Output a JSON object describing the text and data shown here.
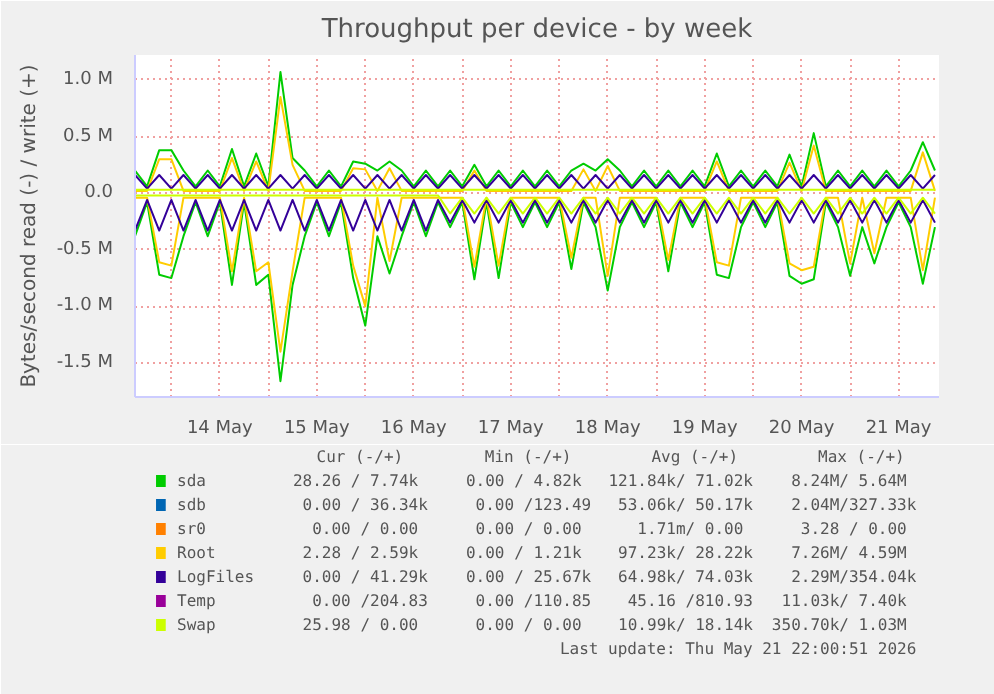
{
  "chart_data": {
    "type": "line",
    "title": "Throughput per device - by week",
    "ylabel": "Bytes/second read (-) / write (+)",
    "x": [
      "2026-05-13T15:00",
      "2026-05-13T18:00",
      "2026-05-13T21:00",
      "2026-05-14T00:00",
      "2026-05-14T03:00",
      "2026-05-14T06:00",
      "2026-05-14T09:00",
      "2026-05-14T12:00",
      "2026-05-14T15:00",
      "2026-05-14T18:00",
      "2026-05-14T21:00",
      "2026-05-15T00:00",
      "2026-05-15T03:00",
      "2026-05-15T06:00",
      "2026-05-15T09:00",
      "2026-05-15T12:00",
      "2026-05-15T15:00",
      "2026-05-15T18:00",
      "2026-05-15T21:00",
      "2026-05-16T00:00",
      "2026-05-16T03:00",
      "2026-05-16T06:00",
      "2026-05-16T09:00",
      "2026-05-16T12:00",
      "2026-05-16T15:00",
      "2026-05-16T18:00",
      "2026-05-16T21:00",
      "2026-05-17T00:00",
      "2026-05-17T03:00",
      "2026-05-17T06:00",
      "2026-05-17T09:00",
      "2026-05-17T12:00",
      "2026-05-17T15:00",
      "2026-05-17T18:00",
      "2026-05-17T21:00",
      "2026-05-18T00:00",
      "2026-05-18T03:00",
      "2026-05-18T06:00",
      "2026-05-18T09:00",
      "2026-05-18T12:00",
      "2026-05-18T15:00",
      "2026-05-18T18:00",
      "2026-05-18T21:00",
      "2026-05-19T00:00",
      "2026-05-19T03:00",
      "2026-05-19T06:00",
      "2026-05-19T09:00",
      "2026-05-19T12:00",
      "2026-05-19T15:00",
      "2026-05-19T18:00",
      "2026-05-19T21:00",
      "2026-05-20T00:00",
      "2026-05-20T03:00",
      "2026-05-20T06:00",
      "2026-05-20T09:00",
      "2026-05-20T12:00",
      "2026-05-20T15:00",
      "2026-05-20T18:00",
      "2026-05-20T21:00",
      "2026-05-21T00:00",
      "2026-05-21T03:00",
      "2026-05-21T06:00",
      "2026-05-21T09:00",
      "2026-05-21T12:00",
      "2026-05-21T15:00",
      "2026-05-21T18:00",
      "2026-05-21T21:00"
    ],
    "xlim": [
      "2026-05-13T15:00",
      "2026-05-21T22:00"
    ],
    "xticks": [
      {
        "value": "2026-05-14T00:00",
        "label": null
      },
      {
        "value": "2026-05-14T12:00",
        "label": "14 May"
      },
      {
        "value": "2026-05-15T00:00",
        "label": null
      },
      {
        "value": "2026-05-15T12:00",
        "label": "15 May"
      },
      {
        "value": "2026-05-16T00:00",
        "label": null
      },
      {
        "value": "2026-05-16T12:00",
        "label": "16 May"
      },
      {
        "value": "2026-05-17T00:00",
        "label": null
      },
      {
        "value": "2026-05-17T12:00",
        "label": "17 May"
      },
      {
        "value": "2026-05-18T00:00",
        "label": null
      },
      {
        "value": "2026-05-18T12:00",
        "label": "18 May"
      },
      {
        "value": "2026-05-19T00:00",
        "label": null
      },
      {
        "value": "2026-05-19T12:00",
        "label": "19 May"
      },
      {
        "value": "2026-05-20T00:00",
        "label": null
      },
      {
        "value": "2026-05-20T12:00",
        "label": "20 May"
      },
      {
        "value": "2026-05-21T00:00",
        "label": null
      },
      {
        "value": "2026-05-21T12:00",
        "label": "21 May"
      }
    ],
    "ylim": [
      -1800000,
      1220000
    ],
    "yticks": [
      {
        "value": -1500000,
        "label": "-1.5 M"
      },
      {
        "value": -1000000,
        "label": "-1.0 M"
      },
      {
        "value": -500000,
        "label": "-0.5 M"
      },
      {
        "value": 0,
        "label": "0.0"
      },
      {
        "value": 500000,
        "label": "0.5 M"
      },
      {
        "value": 1000000,
        "label": "1.0 M"
      }
    ],
    "grid": true,
    "legend": "bottom",
    "line_style": "solid",
    "series": [
      {
        "name": "sda",
        "color": "#00cc00",
        "values": [
          200000,
          60000,
          380000,
          380000,
          200000,
          60000,
          200000,
          60000,
          390000,
          60000,
          350000,
          60000,
          1070000,
          310000,
          200000,
          60000,
          200000,
          60000,
          280000,
          260000,
          200000,
          280000,
          200000,
          60000,
          200000,
          60000,
          200000,
          60000,
          250000,
          60000,
          200000,
          60000,
          200000,
          60000,
          200000,
          60000,
          200000,
          260000,
          200000,
          300000,
          200000,
          60000,
          200000,
          60000,
          200000,
          60000,
          200000,
          60000,
          350000,
          60000,
          200000,
          60000,
          200000,
          60000,
          340000,
          60000,
          530000,
          60000,
          200000,
          60000,
          200000,
          60000,
          200000,
          60000,
          200000,
          450000,
          200000
        ]
      },
      {
        "color": "#00cc00",
        "values": [
          -380000,
          -80000,
          -720000,
          -750000,
          -380000,
          -80000,
          -380000,
          -80000,
          -810000,
          -80000,
          -810000,
          -720000,
          -1660000,
          -810000,
          -380000,
          -80000,
          -380000,
          -80000,
          -750000,
          -1170000,
          -380000,
          -710000,
          -380000,
          -80000,
          -380000,
          -80000,
          -300000,
          -80000,
          -760000,
          -80000,
          -750000,
          -80000,
          -300000,
          -80000,
          -300000,
          -80000,
          -670000,
          -80000,
          -300000,
          -860000,
          -300000,
          -80000,
          -300000,
          -80000,
          -690000,
          -80000,
          -300000,
          -80000,
          -720000,
          -750000,
          -300000,
          -80000,
          -300000,
          -80000,
          -730000,
          -800000,
          -760000,
          -80000,
          -300000,
          -730000,
          -300000,
          -620000,
          -300000,
          -80000,
          -300000,
          -800000,
          -300000
        ]
      },
      {
        "name": "sdb",
        "color": "#0066b3",
        "values": [
          null,
          null,
          null,
          null,
          null,
          null,
          null,
          null,
          null,
          null,
          null,
          null,
          null,
          null,
          null,
          null,
          null,
          null,
          null,
          null,
          null,
          null,
          null,
          null,
          null,
          null,
          null,
          null,
          null,
          null,
          null,
          null,
          null,
          null,
          null,
          null,
          null,
          null,
          null,
          null,
          null,
          null,
          null,
          null,
          null,
          null,
          null,
          null,
          null,
          null,
          null,
          null,
          null,
          null,
          null,
          null,
          null,
          null,
          null,
          null,
          null,
          null,
          null,
          null,
          null,
          null,
          null
        ]
      },
      {
        "name": "sr0",
        "color": "#ff8000",
        "values": [
          null,
          null,
          null,
          null,
          null,
          null,
          null,
          null,
          null,
          null,
          null,
          null,
          null,
          null,
          null,
          null,
          null,
          null,
          null,
          null,
          null,
          null,
          null,
          null,
          null,
          null,
          null,
          null,
          null,
          null,
          null,
          null,
          null,
          null,
          null,
          null,
          null,
          null,
          null,
          null,
          null,
          null,
          null,
          null,
          null,
          null,
          null,
          null,
          null,
          null,
          null,
          null,
          null,
          null,
          null,
          null,
          null,
          null,
          null,
          null,
          null,
          null,
          null,
          null,
          null,
          null,
          null
        ]
      },
      {
        "name": "Root",
        "color": "#ffcc00",
        "values": [
          20000,
          20000,
          300000,
          300000,
          20000,
          20000,
          20000,
          20000,
          310000,
          20000,
          280000,
          20000,
          850000,
          250000,
          20000,
          20000,
          20000,
          20000,
          220000,
          210000,
          20000,
          220000,
          20000,
          20000,
          20000,
          20000,
          20000,
          20000,
          200000,
          20000,
          20000,
          20000,
          20000,
          20000,
          20000,
          20000,
          20000,
          210000,
          20000,
          240000,
          20000,
          20000,
          20000,
          20000,
          20000,
          20000,
          20000,
          20000,
          280000,
          20000,
          20000,
          20000,
          20000,
          20000,
          270000,
          20000,
          420000,
          20000,
          20000,
          20000,
          20000,
          20000,
          20000,
          20000,
          20000,
          360000,
          20000
        ]
      },
      {
        "color": "#ffcc00",
        "values": [
          -40000,
          -40000,
          -610000,
          -640000,
          -40000,
          -40000,
          -40000,
          -40000,
          -690000,
          -40000,
          -690000,
          -610000,
          -1400000,
          -690000,
          -40000,
          -40000,
          -40000,
          -40000,
          -640000,
          -1000000,
          -40000,
          -600000,
          -40000,
          -40000,
          -40000,
          -40000,
          -40000,
          -40000,
          -650000,
          -40000,
          -640000,
          -40000,
          -40000,
          -40000,
          -40000,
          -40000,
          -570000,
          -40000,
          -40000,
          -730000,
          -40000,
          -40000,
          -40000,
          -40000,
          -590000,
          -40000,
          -40000,
          -40000,
          -610000,
          -640000,
          -40000,
          -40000,
          -40000,
          -40000,
          -620000,
          -680000,
          -650000,
          -40000,
          -40000,
          -620000,
          -40000,
          -530000,
          -40000,
          -40000,
          -40000,
          -680000,
          -40000
        ]
      },
      {
        "name": "LogFiles",
        "color": "#330099",
        "values": [
          160000,
          40000,
          160000,
          40000,
          160000,
          40000,
          160000,
          40000,
          160000,
          40000,
          160000,
          40000,
          160000,
          40000,
          160000,
          40000,
          160000,
          40000,
          160000,
          40000,
          160000,
          40000,
          160000,
          40000,
          160000,
          40000,
          160000,
          40000,
          160000,
          40000,
          160000,
          40000,
          160000,
          40000,
          160000,
          40000,
          160000,
          40000,
          160000,
          40000,
          160000,
          40000,
          160000,
          40000,
          160000,
          40000,
          160000,
          40000,
          160000,
          40000,
          160000,
          40000,
          160000,
          40000,
          160000,
          40000,
          160000,
          40000,
          160000,
          40000,
          160000,
          40000,
          160000,
          40000,
          160000,
          40000,
          160000
        ]
      },
      {
        "color": "#330099",
        "values": [
          -330000,
          -60000,
          -330000,
          -60000,
          -330000,
          -60000,
          -330000,
          -60000,
          -330000,
          -60000,
          -330000,
          -60000,
          -330000,
          -60000,
          -330000,
          -60000,
          -330000,
          -60000,
          -330000,
          -60000,
          -330000,
          -60000,
          -330000,
          -60000,
          -330000,
          -60000,
          -260000,
          -60000,
          -260000,
          -60000,
          -260000,
          -60000,
          -260000,
          -60000,
          -260000,
          -60000,
          -260000,
          -60000,
          -260000,
          -60000,
          -260000,
          -60000,
          -260000,
          -60000,
          -260000,
          -60000,
          -260000,
          -60000,
          -260000,
          -60000,
          -260000,
          -60000,
          -260000,
          -60000,
          -260000,
          -60000,
          -260000,
          -60000,
          -260000,
          -60000,
          -260000,
          -60000,
          -260000,
          -60000,
          -260000,
          -60000,
          -260000
        ]
      },
      {
        "name": "Temp",
        "color": "#990099",
        "values": [
          null,
          null,
          null,
          null,
          null,
          null,
          null,
          null,
          null,
          null,
          null,
          null,
          null,
          null,
          null,
          null,
          null,
          null,
          null,
          null,
          null,
          null,
          null,
          null,
          null,
          null,
          null,
          null,
          null,
          null,
          null,
          null,
          null,
          null,
          null,
          null,
          null,
          null,
          null,
          null,
          null,
          null,
          null,
          null,
          null,
          null,
          null,
          null,
          null,
          null,
          null,
          null,
          null,
          null,
          null,
          null,
          null,
          null,
          null,
          null,
          null,
          null,
          null,
          null,
          null,
          null,
          null
        ]
      },
      {
        "name": "Swap",
        "color": "#ccff00",
        "values": [
          30000,
          30000,
          30000,
          30000,
          30000,
          30000,
          30000,
          30000,
          30000,
          30000,
          30000,
          30000,
          30000,
          30000,
          30000,
          30000,
          30000,
          30000,
          30000,
          30000,
          30000,
          30000,
          30000,
          30000,
          30000,
          30000,
          30000,
          30000,
          30000,
          30000,
          30000,
          30000,
          30000,
          30000,
          30000,
          30000,
          30000,
          30000,
          30000,
          30000,
          30000,
          30000,
          30000,
          30000,
          30000,
          30000,
          30000,
          30000,
          30000,
          30000,
          30000,
          30000,
          30000,
          30000,
          30000,
          30000,
          30000,
          30000,
          30000,
          30000,
          30000,
          30000,
          30000,
          30000,
          30000,
          30000,
          30000
        ]
      },
      {
        "color": "#ccff00",
        "values": [
          -20000,
          -20000,
          -20000,
          -20000,
          -20000,
          -20000,
          -20000,
          -20000,
          -20000,
          -20000,
          -20000,
          -20000,
          -20000,
          -20000,
          -20000,
          -20000,
          -20000,
          -20000,
          -20000,
          -20000,
          -20000,
          -20000,
          -20000,
          -20000,
          -20000,
          -20000,
          -180000,
          -40000,
          -180000,
          -40000,
          -180000,
          -40000,
          -180000,
          -40000,
          -180000,
          -40000,
          -180000,
          -40000,
          -180000,
          -40000,
          -180000,
          -40000,
          -180000,
          -40000,
          -180000,
          -40000,
          -180000,
          -40000,
          -180000,
          -40000,
          -180000,
          -40000,
          -180000,
          -40000,
          -180000,
          -40000,
          -180000,
          -40000,
          -180000,
          -40000,
          -180000,
          -40000,
          -180000,
          -40000,
          -180000,
          -40000,
          -180000
        ]
      }
    ],
    "annotations": [
      "Cur (-/+)",
      "Min (-/+)",
      "Avg (-/+)",
      "Max (-/+)",
      "28.26 /  7.74k",
      "0.00 /  4.82k",
      "121.84k/ 71.02k",
      "8.24M/  5.64M",
      "0.00 / 36.34k",
      "0.00 /123.49",
      "53.06k/ 50.17k",
      "2.04M/327.33k",
      "0.00 /  0.00",
      "0.00 /  0.00",
      "1.71m/  0.00",
      "3.28 /  0.00",
      "2.28 /  2.59k",
      "0.00 /  1.21k",
      "97.23k/ 28.22k",
      "7.26M/  4.59M",
      "0.00 / 41.29k",
      "0.00 / 25.67k",
      "64.98k/ 74.03k",
      "2.29M/354.04k",
      "0.00 /204.83",
      "0.00 /110.85",
      "45.16 /810.93",
      "11.03k/  7.40k",
      "25.98 /  0.00",
      "0.00 /  0.00",
      "10.99k/ 18.14k",
      "350.70k/  1.03M",
      "Last update: Thu May 21 22:00:51 2026"
    ]
  }
}
